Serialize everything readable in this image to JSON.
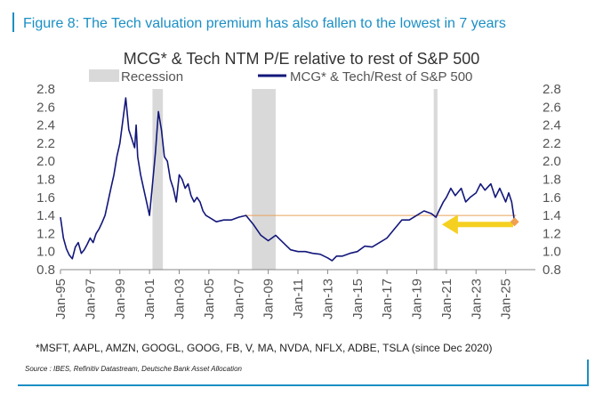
{
  "figure_title": "Figure 8: The Tech valuation premium has also fallen to the lowest in 7 years",
  "footnote": "*MSFT, AAPL, AMZN, GOOGL, GOOG, FB, V, MA, NVDA, NFLX, ADBE, TSLA (since Dec 2020)",
  "source": "Source : IBES, Refinitiv Datastream, Deutsche Bank Asset Allocation",
  "colors": {
    "accent": "#1b8fc4",
    "series": "#12177a",
    "recession": "#d9d9d9",
    "reference_line": "#e8a05a",
    "arrow": "#f5d020",
    "marker": "#f0a050"
  },
  "chart_data": {
    "type": "line",
    "title": "MCG* & Tech NTM P/E relative to rest of S&P 500",
    "xlabel": "",
    "ylabel": "",
    "xlim": [
      1995.0,
      2027.0
    ],
    "ylim": [
      0.8,
      2.8
    ],
    "y_ticks": [
      "0.8",
      "1.0",
      "1.2",
      "1.4",
      "1.6",
      "1.8",
      "2.0",
      "2.2",
      "2.4",
      "2.6",
      "2.8"
    ],
    "y_tick_values": [
      0.8,
      1.0,
      1.2,
      1.4,
      1.6,
      1.8,
      2.0,
      2.2,
      2.4,
      2.6,
      2.8
    ],
    "x_tick_labels": [
      "Jan-95",
      "Jan-97",
      "Jan-99",
      "Jan-01",
      "Jan-03",
      "Jan-05",
      "Jan-07",
      "Jan-09",
      "Jan-11",
      "Jan-13",
      "Jan-15",
      "Jan-17",
      "Jan-19",
      "Jan-21",
      "Jan-23",
      "Jan-25"
    ],
    "x_tick_values": [
      1995,
      1997,
      1999,
      2001,
      2003,
      2005,
      2007,
      2009,
      2011,
      2013,
      2015,
      2017,
      2019,
      2021,
      2023,
      2025
    ],
    "legend": [
      {
        "label": "Recession",
        "kind": "band"
      },
      {
        "label": "MCG* & Tech/Rest of S&P 500",
        "kind": "line"
      }
    ],
    "recessions": [
      [
        2001.2,
        2001.9
      ],
      [
        2007.9,
        2009.5
      ],
      [
        2020.15,
        2020.4
      ]
    ],
    "reference_level": 1.4,
    "series": [
      {
        "name": "MCG* & Tech/Rest of S&P 500",
        "x": [
          1995.0,
          1995.2,
          1995.4,
          1995.6,
          1995.8,
          1996.0,
          1996.2,
          1996.4,
          1996.6,
          1996.8,
          1997.0,
          1997.2,
          1997.4,
          1997.6,
          1997.8,
          1998.0,
          1998.2,
          1998.4,
          1998.6,
          1998.8,
          1999.0,
          1999.2,
          1999.4,
          1999.6,
          1999.8,
          2000.0,
          2000.1,
          2000.2,
          2000.4,
          2000.6,
          2000.8,
          2001.0,
          2001.2,
          2001.4,
          2001.6,
          2001.8,
          2002.0,
          2002.2,
          2002.4,
          2002.6,
          2002.8,
          2003.0,
          2003.2,
          2003.4,
          2003.6,
          2003.8,
          2004.0,
          2004.2,
          2004.4,
          2004.6,
          2004.8,
          2005.0,
          2005.5,
          2006.0,
          2006.5,
          2007.0,
          2007.5,
          2008.0,
          2008.5,
          2009.0,
          2009.5,
          2010.0,
          2010.5,
          2011.0,
          2011.5,
          2012.0,
          2012.5,
          2013.0,
          2013.3,
          2013.6,
          2014.0,
          2014.5,
          2015.0,
          2015.5,
          2016.0,
          2016.5,
          2017.0,
          2017.5,
          2018.0,
          2018.5,
          2019.0,
          2019.5,
          2020.0,
          2020.3,
          2020.5,
          2020.8,
          2021.0,
          2021.3,
          2021.6,
          2022.0,
          2022.3,
          2022.6,
          2023.0,
          2023.3,
          2023.6,
          2024.0,
          2024.3,
          2024.6,
          2025.0,
          2025.2,
          2025.4,
          2025.6
        ],
        "values": [
          1.38,
          1.15,
          1.03,
          0.96,
          0.92,
          1.05,
          1.1,
          0.98,
          1.02,
          1.08,
          1.15,
          1.1,
          1.2,
          1.25,
          1.32,
          1.4,
          1.55,
          1.7,
          1.85,
          2.05,
          2.2,
          2.45,
          2.7,
          2.35,
          2.25,
          2.15,
          2.4,
          2.05,
          1.85,
          1.7,
          1.55,
          1.4,
          1.75,
          2.1,
          2.55,
          2.35,
          2.05,
          2.0,
          1.8,
          1.7,
          1.55,
          1.85,
          1.8,
          1.7,
          1.75,
          1.62,
          1.55,
          1.6,
          1.55,
          1.45,
          1.4,
          1.38,
          1.33,
          1.35,
          1.35,
          1.38,
          1.4,
          1.3,
          1.18,
          1.12,
          1.18,
          1.1,
          1.02,
          1.0,
          1.0,
          0.98,
          0.97,
          0.93,
          0.9,
          0.95,
          0.95,
          0.98,
          1.0,
          1.06,
          1.05,
          1.1,
          1.15,
          1.25,
          1.35,
          1.35,
          1.4,
          1.45,
          1.42,
          1.38,
          1.45,
          1.55,
          1.6,
          1.7,
          1.62,
          1.7,
          1.55,
          1.6,
          1.65,
          1.75,
          1.68,
          1.75,
          1.6,
          1.7,
          1.55,
          1.65,
          1.55,
          1.33
        ]
      }
    ]
  }
}
